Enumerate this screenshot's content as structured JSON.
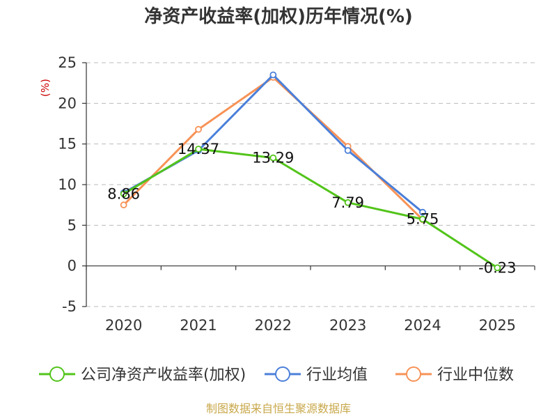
{
  "chart_data": {
    "type": "line",
    "title": "净资产收益率(加权)历年情况(%)",
    "ylabel": "(%)",
    "categories": [
      "2020",
      "2021",
      "2022",
      "2023",
      "2024",
      "2025"
    ],
    "ylim": [
      -5,
      25
    ],
    "yticks": [
      25,
      20,
      15,
      10,
      5,
      0,
      -5
    ],
    "grid": true,
    "legend_position": "bottom",
    "series": [
      {
        "name": "公司净资产收益率(加权)",
        "color": "#52c41a",
        "values": [
          8.86,
          14.37,
          13.29,
          7.79,
          5.75,
          -0.23
        ],
        "labels": [
          "8.86",
          "14.37",
          "13.29",
          "7.79",
          "5.75",
          "-0.23"
        ]
      },
      {
        "name": "行业均值",
        "color": "#4a7fd9",
        "values": [
          9.0,
          14.2,
          23.5,
          14.2,
          6.6,
          null
        ]
      },
      {
        "name": "行业中位数",
        "color": "#f79256",
        "values": [
          7.5,
          16.8,
          23.2,
          14.7,
          5.7,
          null
        ]
      }
    ]
  },
  "source": "制图数据来自恒生聚源数据库",
  "colors": {
    "unit_label": "#cc0000",
    "source": "#c8a84b",
    "grid": "#bbbbbb",
    "axis": "#333333"
  }
}
